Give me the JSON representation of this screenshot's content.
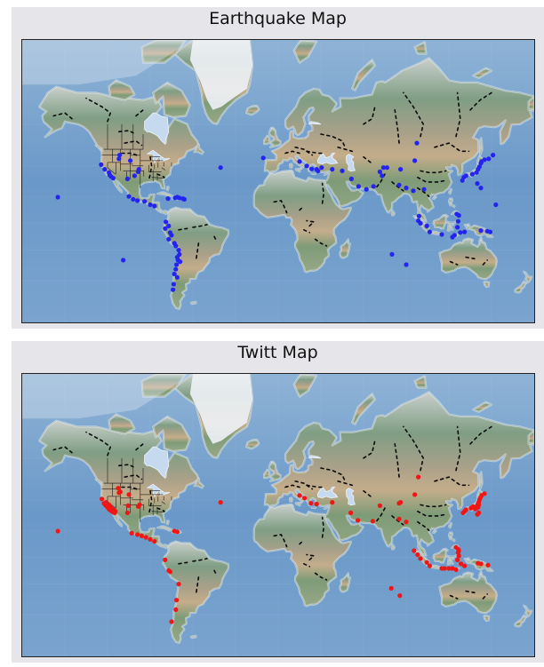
{
  "maps": [
    {
      "title": "Earthquake Map",
      "marker_color": "#2424f0",
      "points": [
        [
          -124.5,
          40.7
        ],
        [
          -122,
          38
        ],
        [
          -119,
          36
        ],
        [
          -118.5,
          34.5
        ],
        [
          -117.5,
          33.5
        ],
        [
          -116,
          32.5
        ],
        [
          -112,
          44
        ],
        [
          -111.5,
          46
        ],
        [
          -104,
          43
        ],
        [
          -98.5,
          36.5
        ],
        [
          -98,
          38
        ],
        [
          -101,
          34
        ],
        [
          -106,
          32
        ],
        [
          -155,
          19.5
        ],
        [
          -40.5,
          39
        ],
        [
          -105,
          20
        ],
        [
          -102,
          18
        ],
        [
          -99,
          17
        ],
        [
          -94,
          16.5
        ],
        [
          -90,
          14
        ],
        [
          -87,
          13
        ],
        [
          -77.5,
          18.5
        ],
        [
          -72.5,
          19
        ],
        [
          -69.5,
          19
        ],
        [
          -67,
          18.5
        ],
        [
          -66,
          18
        ],
        [
          -71,
          19.5
        ],
        [
          -79,
          1
        ],
        [
          -77,
          -2
        ],
        [
          -79.5,
          -4
        ],
        [
          -76,
          -7
        ],
        [
          -75,
          -9
        ],
        [
          -77,
          -12
        ],
        [
          -73,
          -15
        ],
        [
          -72,
          -17
        ],
        [
          -70,
          -20
        ],
        [
          -69.5,
          -23
        ],
        [
          -71,
          -25
        ],
        [
          -70.5,
          -27
        ],
        [
          -69,
          -28
        ],
        [
          -71.5,
          -30
        ],
        [
          -72,
          -33
        ],
        [
          -73,
          -36
        ],
        [
          -71,
          -38
        ],
        [
          -73.5,
          -42
        ],
        [
          -74,
          -45
        ],
        [
          -109,
          -27
        ],
        [
          -10.5,
          44.5
        ],
        [
          15,
          42.5
        ],
        [
          20,
          40
        ],
        [
          23.5,
          38.2
        ],
        [
          27,
          38
        ],
        [
          28,
          37
        ],
        [
          30.5,
          39
        ],
        [
          38,
          38
        ],
        [
          45,
          37
        ],
        [
          51.5,
          32
        ],
        [
          56.5,
          27
        ],
        [
          62,
          25
        ],
        [
          67,
          27
        ],
        [
          71.5,
          36.5
        ],
        [
          73,
          34
        ],
        [
          76.5,
          39
        ],
        [
          74,
          39
        ],
        [
          85,
          28
        ],
        [
          90,
          26
        ],
        [
          95,
          24
        ],
        [
          102.5,
          25
        ],
        [
          96,
          43
        ],
        [
          97.5,
          52
        ],
        [
          86,
          38
        ],
        [
          106.5,
          -6.5
        ],
        [
          98.5,
          2
        ],
        [
          100,
          0
        ],
        [
          104.5,
          -2
        ],
        [
          99,
          5.5
        ],
        [
          115,
          -8.5
        ],
        [
          122.5,
          -10.5
        ],
        [
          124,
          -9
        ],
        [
          126,
          -3
        ],
        [
          126.5,
          1.5
        ],
        [
          127,
          6
        ],
        [
          125.5,
          7
        ],
        [
          128,
          -7
        ],
        [
          131,
          -6.5
        ],
        [
          142.5,
          -5.5
        ],
        [
          147,
          -6
        ],
        [
          149,
          -6.5
        ],
        [
          129.5,
          31
        ],
        [
          130.5,
          33
        ],
        [
          132,
          34
        ],
        [
          136.5,
          35
        ],
        [
          139.5,
          36
        ],
        [
          140.5,
          38
        ],
        [
          141.5,
          39.5
        ],
        [
          142.5,
          41.5
        ],
        [
          143,
          42.5
        ],
        [
          145,
          43.5
        ],
        [
          148,
          44
        ],
        [
          151,
          46
        ],
        [
          140,
          29
        ],
        [
          142.5,
          26
        ],
        [
          153,
          14
        ],
        [
          80,
          -23
        ],
        [
          90,
          -30
        ]
      ]
    },
    {
      "title": "Twitt Map",
      "marker_color": "#f01616",
      "points": [
        [
          -122.5,
          38
        ],
        [
          -122,
          37.5
        ],
        [
          -121.5,
          37
        ],
        [
          -121,
          36.5
        ],
        [
          -120.5,
          36
        ],
        [
          -120,
          35.5
        ],
        [
          -119.5,
          35
        ],
        [
          -119,
          34.5
        ],
        [
          -118.5,
          34
        ],
        [
          -118,
          34
        ],
        [
          -117.5,
          33.5
        ],
        [
          -117,
          33
        ],
        [
          -116.5,
          33
        ],
        [
          -116,
          32.5
        ],
        [
          -115.5,
          32.5
        ],
        [
          -115,
          32
        ],
        [
          -121,
          38.5
        ],
        [
          -119,
          37
        ],
        [
          -118,
          36
        ],
        [
          -117,
          34.5
        ],
        [
          -116,
          34
        ],
        [
          -115,
          33.5
        ],
        [
          -114.5,
          33
        ],
        [
          -120,
          37
        ],
        [
          -118.5,
          35
        ],
        [
          -124,
          40.5
        ],
        [
          -112,
          44
        ],
        [
          -112.5,
          46.5
        ],
        [
          -111,
          44.5
        ],
        [
          -105,
          43
        ],
        [
          -105.5,
          36.5
        ],
        [
          -98.5,
          36
        ],
        [
          -97.5,
          37
        ],
        [
          -106,
          32
        ],
        [
          -155,
          19.5
        ],
        [
          -40.5,
          38.5
        ],
        [
          -103,
          18
        ],
        [
          -99,
          17
        ],
        [
          -96,
          16
        ],
        [
          -93,
          15
        ],
        [
          -90,
          13.5
        ],
        [
          -87,
          12
        ],
        [
          -73,
          19.5
        ],
        [
          -71,
          19
        ],
        [
          -79.5,
          -2
        ],
        [
          -77,
          -10
        ],
        [
          -76,
          -11
        ],
        [
          -70,
          -20
        ],
        [
          -71.5,
          -31
        ],
        [
          -72,
          -37
        ],
        [
          -75,
          -44
        ],
        [
          15,
          42.5
        ],
        [
          18.5,
          41
        ],
        [
          23,
          38
        ],
        [
          27,
          37.5
        ],
        [
          38,
          38.5
        ],
        [
          51,
          32
        ],
        [
          56,
          27
        ],
        [
          66.5,
          26.5
        ],
        [
          71.5,
          36.5
        ],
        [
          85,
          38
        ],
        [
          86,
          38.5
        ],
        [
          85,
          28
        ],
        [
          90,
          26
        ],
        [
          96,
          43
        ],
        [
          98.5,
          52
        ],
        [
          95.5,
          5
        ],
        [
          98,
          2
        ],
        [
          100,
          -1
        ],
        [
          104.5,
          -4
        ],
        [
          106.5,
          -6.5
        ],
        [
          115,
          -8.5
        ],
        [
          117,
          -8.5
        ],
        [
          120,
          -8.5
        ],
        [
          122.5,
          -8.5
        ],
        [
          125,
          -9.5
        ],
        [
          126,
          -2
        ],
        [
          127,
          1
        ],
        [
          126.5,
          3.5
        ],
        [
          126.5,
          6
        ],
        [
          125,
          7.5
        ],
        [
          127,
          5
        ],
        [
          128.5,
          -5
        ],
        [
          131,
          -6.5
        ],
        [
          140.5,
          -4.5
        ],
        [
          142.5,
          -5
        ],
        [
          147.5,
          -6
        ],
        [
          140,
          31
        ],
        [
          141,
          32
        ],
        [
          130,
          32
        ],
        [
          131,
          33
        ],
        [
          132,
          34
        ],
        [
          135.5,
          35
        ],
        [
          137,
          36
        ],
        [
          139,
          35.5
        ],
        [
          140,
          36.5
        ],
        [
          140.5,
          37.5
        ],
        [
          141,
          38.5
        ],
        [
          141.5,
          40
        ],
        [
          142,
          41
        ],
        [
          143,
          42.5
        ],
        [
          145,
          43.5
        ],
        [
          139.5,
          35
        ],
        [
          138.5,
          34.5
        ],
        [
          140.5,
          35.5
        ],
        [
          141,
          37
        ],
        [
          79.5,
          -23
        ],
        [
          85.5,
          -28
        ]
      ]
    }
  ]
}
